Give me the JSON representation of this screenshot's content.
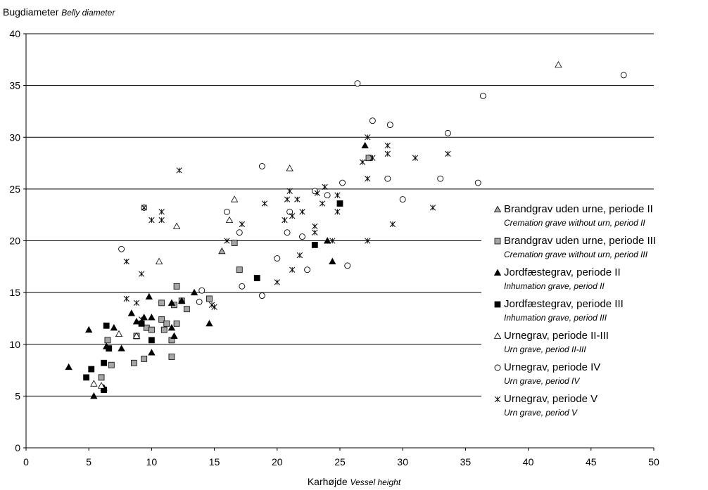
{
  "chart_data": {
    "type": "scatter",
    "title": "",
    "ylabel": "Bugdiameter",
    "ylabel_translation": "Belly diameter",
    "xlabel": "Karhøjde",
    "xlabel_translation": "Vessel height",
    "xlim": [
      0,
      50
    ],
    "ylim": [
      0,
      40
    ],
    "xticks": [
      "0",
      "5",
      "10",
      "15",
      "20",
      "25",
      "30",
      "35",
      "40",
      "45",
      "50"
    ],
    "yticks": [
      "0",
      "5",
      "10",
      "15",
      "20",
      "25",
      "30",
      "35",
      "40"
    ],
    "grid": "horizontal",
    "legend_position": "right",
    "series": [
      {
        "name": "Brandgrav uden urne, periode II",
        "translation": "Cremation grave without urn, period II",
        "marker": "triangle-gray",
        "points": [
          [
            15.6,
            19.0
          ],
          [
            27.3,
            28.0
          ]
        ]
      },
      {
        "name": "Brandgrav uden urne, periode III",
        "translation": "Cremation grave without urn, period III",
        "marker": "square-gray",
        "points": [
          [
            6.0,
            6.8
          ],
          [
            6.5,
            10.4
          ],
          [
            6.8,
            8.0
          ],
          [
            8.6,
            8.2
          ],
          [
            8.8,
            10.8
          ],
          [
            9.4,
            8.6
          ],
          [
            9.6,
            11.6
          ],
          [
            10.0,
            11.4
          ],
          [
            10.8,
            14.0
          ],
          [
            10.8,
            12.4
          ],
          [
            11.0,
            11.4
          ],
          [
            11.2,
            12.0
          ],
          [
            11.6,
            8.8
          ],
          [
            11.6,
            10.4
          ],
          [
            11.8,
            13.8
          ],
          [
            12.0,
            15.6
          ],
          [
            12.0,
            12.0
          ],
          [
            12.4,
            14.2
          ],
          [
            12.8,
            13.4
          ],
          [
            14.6,
            14.4
          ],
          [
            16.6,
            19.8
          ],
          [
            17.0,
            17.2
          ],
          [
            27.3,
            28.0
          ]
        ]
      },
      {
        "name": "Jordfæstegrav, periode II",
        "translation": "Inhumation grave, period II",
        "marker": "triangle-black",
        "points": [
          [
            3.4,
            7.8
          ],
          [
            5.0,
            11.4
          ],
          [
            5.4,
            5.0
          ],
          [
            6.2,
            5.8
          ],
          [
            6.4,
            9.8
          ],
          [
            7.0,
            11.6
          ],
          [
            7.6,
            9.6
          ],
          [
            8.4,
            13.0
          ],
          [
            8.8,
            12.2
          ],
          [
            9.4,
            12.6
          ],
          [
            9.8,
            14.6
          ],
          [
            10.0,
            12.6
          ],
          [
            10.0,
            9.2
          ],
          [
            11.6,
            14.0
          ],
          [
            11.6,
            11.6
          ],
          [
            11.8,
            10.8
          ],
          [
            12.4,
            14.2
          ],
          [
            13.4,
            15.0
          ],
          [
            14.6,
            12.0
          ],
          [
            24.0,
            20.0
          ],
          [
            24.4,
            18.0
          ],
          [
            27.0,
            29.2
          ]
        ]
      },
      {
        "name": "Jordfæstegrav, periode III",
        "translation": "Inhumation grave, period III",
        "marker": "square-black",
        "points": [
          [
            4.8,
            6.8
          ],
          [
            5.2,
            7.6
          ],
          [
            6.2,
            8.2
          ],
          [
            6.2,
            5.6
          ],
          [
            6.4,
            11.8
          ],
          [
            6.6,
            9.6
          ],
          [
            9.2,
            12.0
          ],
          [
            10.0,
            10.4
          ],
          [
            18.4,
            16.4
          ],
          [
            23.0,
            19.6
          ],
          [
            25.0,
            23.6
          ]
        ]
      },
      {
        "name": "Urnegrav, periode II-III",
        "translation": "Urn grave, period II-III",
        "marker": "triangle-open",
        "points": [
          [
            5.4,
            6.2
          ],
          [
            6.0,
            6.0
          ],
          [
            7.4,
            11.0
          ],
          [
            8.8,
            10.8
          ],
          [
            10.6,
            18.0
          ],
          [
            12.0,
            21.4
          ],
          [
            16.2,
            22.0
          ],
          [
            16.6,
            24.0
          ],
          [
            21.0,
            27.0
          ],
          [
            42.4,
            37.0
          ]
        ]
      },
      {
        "name": "Urnegrav, periode IV",
        "translation": "Urn grave, period IV",
        "marker": "circle-open",
        "points": [
          [
            7.6,
            19.2
          ],
          [
            9.4,
            23.2
          ],
          [
            13.8,
            14.1
          ],
          [
            14.0,
            15.2
          ],
          [
            16.0,
            22.8
          ],
          [
            17.0,
            20.8
          ],
          [
            17.2,
            15.6
          ],
          [
            18.8,
            27.2
          ],
          [
            18.8,
            14.7
          ],
          [
            20.0,
            18.3
          ],
          [
            20.8,
            20.8
          ],
          [
            21.0,
            22.8
          ],
          [
            22.0,
            20.4
          ],
          [
            22.4,
            17.2
          ],
          [
            23.0,
            24.8
          ],
          [
            24.0,
            24.4
          ],
          [
            25.2,
            25.6
          ],
          [
            25.6,
            17.6
          ],
          [
            26.4,
            35.2
          ],
          [
            27.6,
            31.6
          ],
          [
            28.8,
            26.0
          ],
          [
            29.0,
            31.2
          ],
          [
            30.0,
            24.0
          ],
          [
            33.0,
            26.0
          ],
          [
            33.6,
            30.4
          ],
          [
            36.0,
            25.6
          ],
          [
            36.4,
            34.0
          ],
          [
            47.6,
            36.0
          ]
        ]
      },
      {
        "name": "Urnegrav, periode V",
        "translation": "Urn grave, period V",
        "marker": "star",
        "points": [
          [
            8.0,
            18.0
          ],
          [
            8.0,
            14.4
          ],
          [
            8.8,
            14.0
          ],
          [
            9.2,
            16.8
          ],
          [
            9.2,
            12.4
          ],
          [
            9.4,
            23.2
          ],
          [
            10.0,
            22.0
          ],
          [
            10.8,
            22.8
          ],
          [
            10.8,
            22.0
          ],
          [
            12.2,
            26.8
          ],
          [
            14.8,
            13.8
          ],
          [
            15.0,
            13.6
          ],
          [
            16.0,
            20.0
          ],
          [
            17.2,
            21.6
          ],
          [
            19.0,
            23.6
          ],
          [
            20.0,
            16.0
          ],
          [
            20.6,
            22.0
          ],
          [
            20.8,
            24.0
          ],
          [
            21.0,
            24.8
          ],
          [
            21.2,
            22.4
          ],
          [
            21.2,
            17.2
          ],
          [
            21.6,
            24.0
          ],
          [
            21.8,
            18.6
          ],
          [
            22.0,
            22.8
          ],
          [
            23.0,
            21.4
          ],
          [
            23.0,
            20.8
          ],
          [
            23.2,
            24.6
          ],
          [
            23.6,
            23.6
          ],
          [
            23.8,
            25.2
          ],
          [
            24.4,
            20.0
          ],
          [
            24.8,
            24.4
          ],
          [
            24.8,
            22.8
          ],
          [
            26.8,
            27.6
          ],
          [
            27.2,
            30.0
          ],
          [
            27.2,
            26.0
          ],
          [
            27.2,
            20.0
          ],
          [
            27.6,
            28.0
          ],
          [
            28.8,
            28.4
          ],
          [
            28.8,
            29.2
          ],
          [
            29.2,
            21.6
          ],
          [
            31.0,
            28.0
          ],
          [
            32.4,
            23.2
          ],
          [
            33.6,
            28.4
          ]
        ]
      }
    ]
  }
}
